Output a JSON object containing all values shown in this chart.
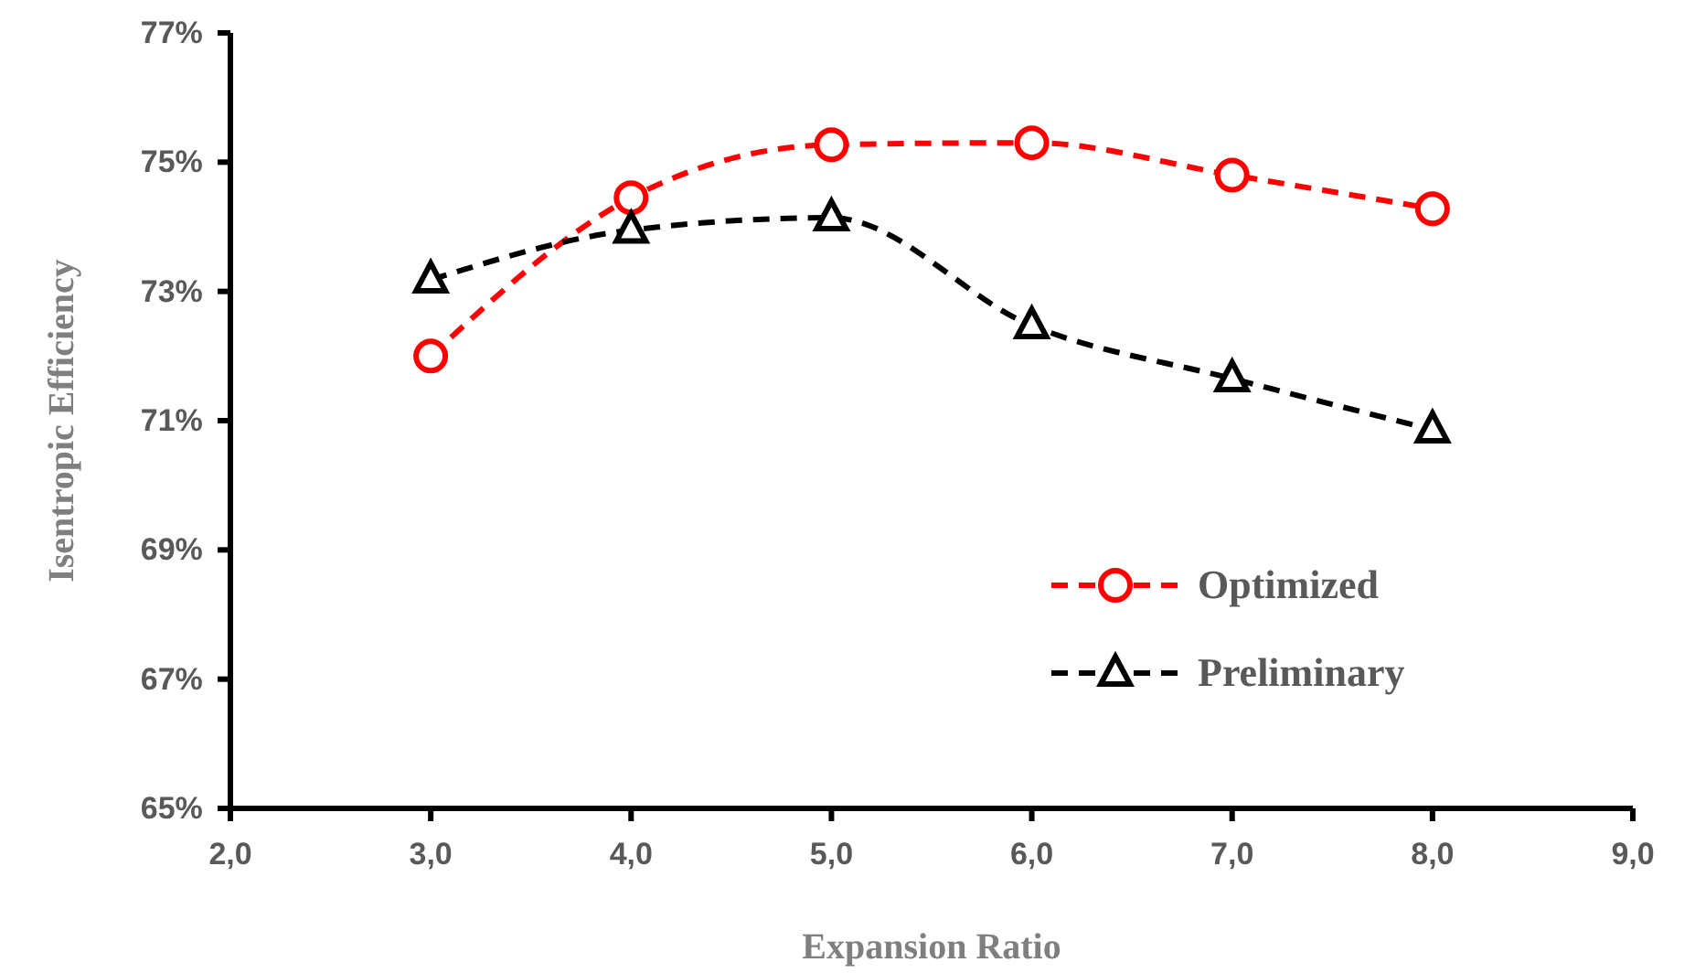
{
  "chart_data": {
    "type": "line",
    "xlabel": "Expansion Ratio",
    "ylabel": "Isentropic Efficiency",
    "x": [
      3,
      4,
      5,
      6,
      7,
      8
    ],
    "series": [
      {
        "name": "Optimized",
        "color": "#ff0000",
        "marker": "circle",
        "values": [
          72.0,
          74.45,
          75.27,
          75.3,
          74.8,
          74.28
        ]
      },
      {
        "name": "Preliminary",
        "color": "#000000",
        "marker": "triangle",
        "values": [
          73.18,
          73.95,
          74.14,
          72.47,
          71.65,
          70.86
        ]
      }
    ],
    "xlim": [
      2,
      9
    ],
    "xticks": [
      {
        "value": 2,
        "label": "2,0"
      },
      {
        "value": 3,
        "label": "3,0"
      },
      {
        "value": 4,
        "label": "4,0"
      },
      {
        "value": 5,
        "label": "5,0"
      },
      {
        "value": 6,
        "label": "6,0"
      },
      {
        "value": 7,
        "label": "7,0"
      },
      {
        "value": 8,
        "label": "8,0"
      },
      {
        "value": 9,
        "label": "9,0"
      }
    ],
    "ylim": [
      65,
      77
    ],
    "yticks": [
      {
        "value": 65,
        "label": "65%"
      },
      {
        "value": 67,
        "label": "67%"
      },
      {
        "value": 69,
        "label": "69%"
      },
      {
        "value": 71,
        "label": "71%"
      },
      {
        "value": 73,
        "label": "73%"
      },
      {
        "value": 75,
        "label": "75%"
      },
      {
        "value": 77,
        "label": "77%"
      }
    ],
    "line_style": "dashed",
    "legend": "bottom right",
    "grid": false
  }
}
